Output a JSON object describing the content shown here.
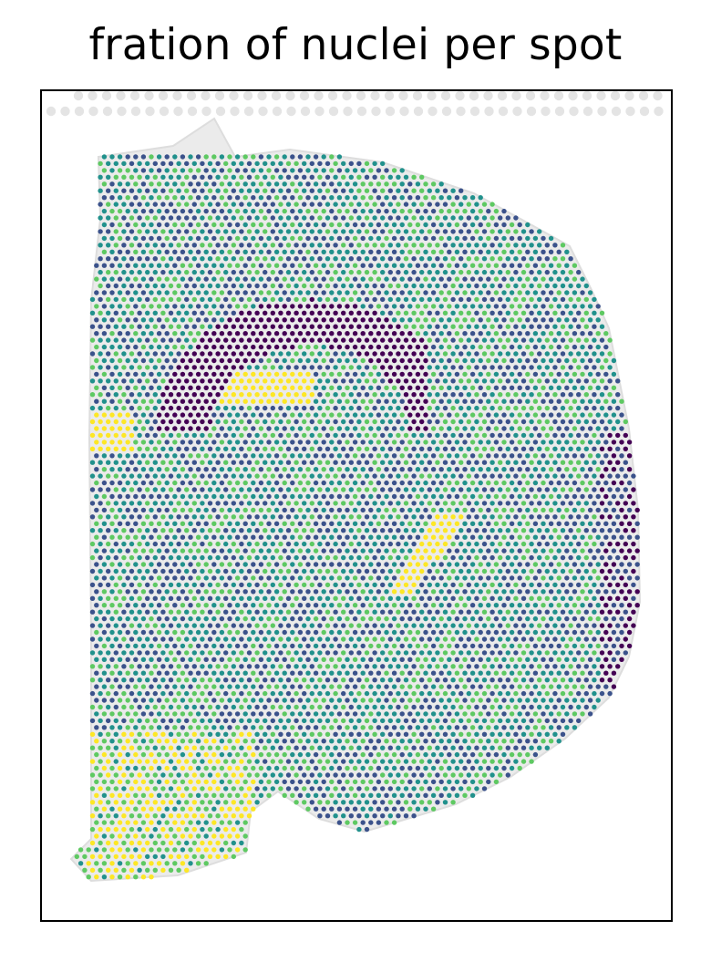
{
  "chart_data": {
    "type": "scatter",
    "title": "fration of nuclei per spot",
    "xlabel": "",
    "ylabel": "",
    "axes_ticks": "none",
    "grid": false,
    "legend": "none",
    "colormap": "viridis",
    "value_range": [
      0,
      1
    ],
    "background": "tissue histology image (grayscale)",
    "series": [
      {
        "marker": "circle",
        "spot_pattern": "hexagonal Visium spot grid over tissue section",
        "points": []
      }
    ],
    "colors": {
      "v0": "#440154",
      "v1": "#3b528b",
      "v2": "#21918c",
      "v3": "#5ec962",
      "v4": "#fde725",
      "frame": "#000000",
      "tissue": "#e6e6e6",
      "fiducial": "#e4e4e4"
    }
  }
}
